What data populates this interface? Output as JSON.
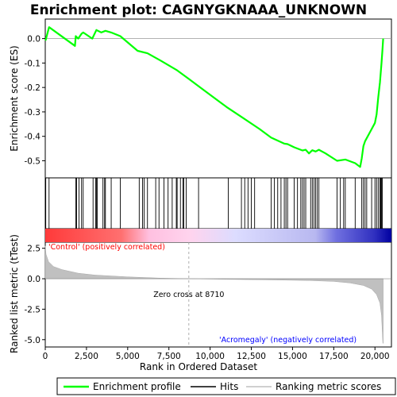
{
  "chart_data": {
    "type": "line",
    "title": "Enrichment plot: CAGNYGKNAAA_UNKNOWN",
    "xlabel": "Rank in Ordered Dataset",
    "ylabel_top": "Enrichment score (ES)",
    "ylabel_bottom": "Ranked list metric (tTest)",
    "x_range": [
      0,
      21000
    ],
    "es_ylim": [
      -0.57,
      0.08
    ],
    "metric_ylim": [
      -5.6,
      3.0
    ],
    "x_ticks": [
      0,
      2500,
      5000,
      7500,
      10000,
      12500,
      15000,
      17500,
      20000
    ],
    "x_tick_labels": [
      "0",
      "2,500",
      "5,000",
      "7,500",
      "10,000",
      "12,500",
      "15,000",
      "17,500",
      "20,000"
    ],
    "es_ticks": [
      0.0,
      -0.1,
      -0.2,
      -0.3,
      -0.4,
      -0.5
    ],
    "es_tick_labels": [
      "0.0",
      "-0.1",
      "-0.2",
      "-0.3",
      "-0.4",
      "-0.5"
    ],
    "metric_ticks": [
      2.5,
      0.0,
      -2.5,
      -5.0
    ],
    "metric_tick_labels": [
      "2.5",
      "0.0",
      "-2.5",
      "-5.0"
    ],
    "zero_cross_rank": 8710,
    "zero_cross_label": "Zero cross at 8710",
    "positive_label": "'Control' (positively correlated)",
    "negative_label": "'Acromegaly' (negatively correlated)",
    "n_ranks": 20500,
    "hit_ranks": [
      30,
      230,
      1850,
      1900,
      2050,
      2200,
      2300,
      2900,
      3050,
      3100,
      3150,
      3500,
      3600,
      3650,
      4000,
      4550,
      5700,
      5900,
      6000,
      6200,
      6700,
      6900,
      7200,
      7450,
      7700,
      7950,
      8000,
      8200,
      8350,
      8400,
      8550,
      9300,
      11100,
      11900,
      12100,
      12300,
      12500,
      12700,
      13700,
      13900,
      14100,
      14300,
      14500,
      14600,
      14700,
      15100,
      15300,
      15500,
      15600,
      15700,
      15800,
      16100,
      16200,
      16300,
      16400,
      16500,
      16600,
      17700,
      17900,
      18100,
      18200,
      18800,
      19200,
      19300,
      19400,
      19500,
      19800,
      20000,
      20100,
      20200,
      20300,
      20350,
      20400,
      20450
    ],
    "es_profile": [
      {
        "rank": 0,
        "es": 0.0
      },
      {
        "rank": 30,
        "es": -0.005
      },
      {
        "rank": 230,
        "es": 0.047
      },
      {
        "rank": 1800,
        "es": -0.03
      },
      {
        "rank": 1850,
        "es": 0.01
      },
      {
        "rank": 2000,
        "es": 0.0
      },
      {
        "rank": 2200,
        "es": 0.02
      },
      {
        "rank": 2300,
        "es": 0.025
      },
      {
        "rank": 2850,
        "es": 0.0
      },
      {
        "rank": 3100,
        "es": 0.035
      },
      {
        "rank": 3400,
        "es": 0.025
      },
      {
        "rank": 3650,
        "es": 0.032
      },
      {
        "rank": 4000,
        "es": 0.025
      },
      {
        "rank": 4550,
        "es": 0.01
      },
      {
        "rank": 5600,
        "es": -0.05
      },
      {
        "rank": 6200,
        "es": -0.06
      },
      {
        "rank": 7000,
        "es": -0.09
      },
      {
        "rank": 8000,
        "es": -0.13
      },
      {
        "rank": 8710,
        "es": -0.165
      },
      {
        "rank": 10000,
        "es": -0.23
      },
      {
        "rank": 11000,
        "es": -0.28
      },
      {
        "rank": 12000,
        "es": -0.325
      },
      {
        "rank": 13000,
        "es": -0.37
      },
      {
        "rank": 13700,
        "es": -0.405
      },
      {
        "rank": 14500,
        "es": -0.43
      },
      {
        "rank": 14700,
        "es": -0.432
      },
      {
        "rank": 15100,
        "es": -0.445
      },
      {
        "rank": 15600,
        "es": -0.458
      },
      {
        "rank": 15800,
        "es": -0.455
      },
      {
        "rank": 16000,
        "es": -0.47
      },
      {
        "rank": 16200,
        "es": -0.457
      },
      {
        "rank": 16400,
        "es": -0.462
      },
      {
        "rank": 16600,
        "es": -0.455
      },
      {
        "rank": 17000,
        "es": -0.47
      },
      {
        "rank": 17700,
        "es": -0.5
      },
      {
        "rank": 18200,
        "es": -0.495
      },
      {
        "rank": 18800,
        "es": -0.51
      },
      {
        "rank": 19100,
        "es": -0.525
      },
      {
        "rank": 19200,
        "es": -0.49
      },
      {
        "rank": 19300,
        "es": -0.44
      },
      {
        "rank": 19400,
        "es": -0.42
      },
      {
        "rank": 19800,
        "es": -0.37
      },
      {
        "rank": 20000,
        "es": -0.345
      },
      {
        "rank": 20100,
        "es": -0.31
      },
      {
        "rank": 20200,
        "es": -0.24
      },
      {
        "rank": 20300,
        "es": -0.18
      },
      {
        "rank": 20350,
        "es": -0.14
      },
      {
        "rank": 20400,
        "es": -0.1
      },
      {
        "rank": 20450,
        "es": -0.05
      },
      {
        "rank": 20500,
        "es": 0.0
      }
    ],
    "metric_profile": [
      {
        "rank": 0,
        "value": 2.7
      },
      {
        "rank": 50,
        "value": 2.0
      },
      {
        "rank": 200,
        "value": 1.4
      },
      {
        "rank": 500,
        "value": 1.0
      },
      {
        "rank": 1000,
        "value": 0.75
      },
      {
        "rank": 2000,
        "value": 0.45
      },
      {
        "rank": 3000,
        "value": 0.3
      },
      {
        "rank": 5000,
        "value": 0.15
      },
      {
        "rank": 7000,
        "value": 0.05
      },
      {
        "rank": 8710,
        "value": 0.0
      },
      {
        "rank": 11000,
        "value": -0.05
      },
      {
        "rank": 14000,
        "value": -0.1
      },
      {
        "rank": 16000,
        "value": -0.15
      },
      {
        "rank": 17500,
        "value": -0.22
      },
      {
        "rank": 18500,
        "value": -0.35
      },
      {
        "rank": 19300,
        "value": -0.55
      },
      {
        "rank": 19800,
        "value": -0.85
      },
      {
        "rank": 20100,
        "value": -1.3
      },
      {
        "rank": 20300,
        "value": -2.0
      },
      {
        "rank": 20400,
        "value": -3.0
      },
      {
        "rank": 20480,
        "value": -5.3
      },
      {
        "rank": 20500,
        "value": -5.3
      }
    ],
    "colors": {
      "es_line": "#00ff00",
      "hits": "#000000",
      "metric_fill": "#c0c0c0",
      "zero_line": "#c0c0c0",
      "positive_label": "#ff0000",
      "negative_label": "#0000ff"
    }
  },
  "legend": {
    "items": [
      {
        "label": "Enrichment profile",
        "color": "#00ff00"
      },
      {
        "label": "Hits",
        "color": "#000000"
      },
      {
        "label": "Ranking metric scores",
        "color": "#c0c0c0"
      }
    ]
  }
}
